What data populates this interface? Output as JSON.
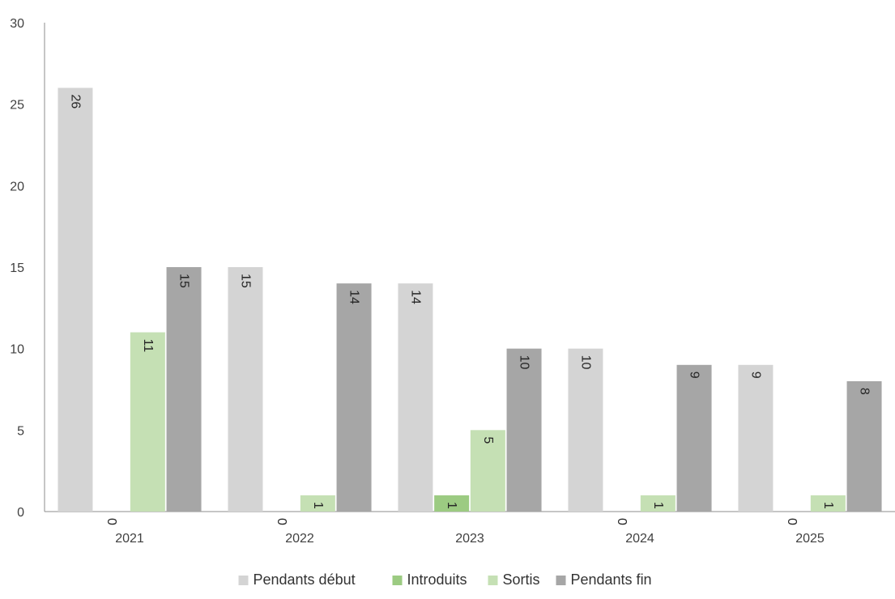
{
  "chart_data": {
    "type": "bar",
    "title": "",
    "xlabel": "",
    "ylabel": "",
    "categories": [
      "2021",
      "2022",
      "2023",
      "2024",
      "2025"
    ],
    "series": [
      {
        "name": "Pendants début",
        "color": "#d4d4d4",
        "values": [
          26,
          15,
          14,
          10,
          9
        ]
      },
      {
        "name": "Introduits",
        "color": "#9ccb82",
        "values": [
          0,
          0,
          1,
          0,
          0
        ]
      },
      {
        "name": "Sortis",
        "color": "#c5e0b4",
        "values": [
          11,
          1,
          5,
          1,
          1
        ]
      },
      {
        "name": "Pendants fin",
        "color": "#a6a6a6",
        "values": [
          15,
          14,
          10,
          9,
          8
        ]
      }
    ],
    "ylim": [
      0,
      30
    ],
    "yticks": [
      0,
      5,
      10,
      15,
      20,
      25,
      30
    ],
    "grid": false,
    "legend_position": "bottom",
    "data_labels": "rotated-inside-top"
  }
}
